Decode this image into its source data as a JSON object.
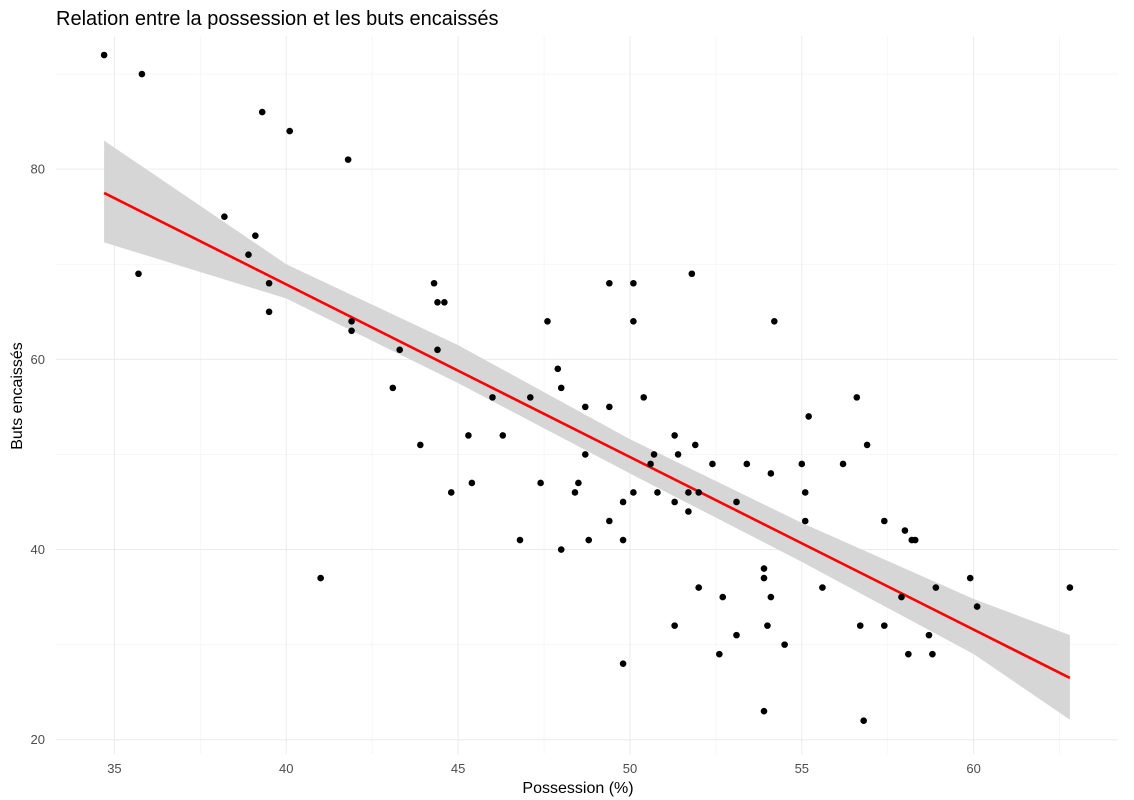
{
  "chart_data": {
    "type": "scatter",
    "title": "Relation entre la possession et les buts encaissés",
    "xlabel": "Possession (%)",
    "ylabel": "Buts encaissés",
    "xlim": [
      33.3,
      64.2
    ],
    "ylim": [
      18.5,
      94.0
    ],
    "x_ticks": [
      35,
      40,
      45,
      50,
      55,
      60
    ],
    "y_ticks": [
      20,
      40,
      60,
      80
    ],
    "grid": true,
    "legend": "none",
    "colors": {
      "points": "#000000",
      "fit_line": "#ff0000",
      "confidence_band": "#d4d4d4"
    },
    "points": [
      {
        "x": 34.7,
        "y": 92
      },
      {
        "x": 35.8,
        "y": 90
      },
      {
        "x": 35.7,
        "y": 69
      },
      {
        "x": 38.2,
        "y": 75
      },
      {
        "x": 38.9,
        "y": 71
      },
      {
        "x": 39.1,
        "y": 73
      },
      {
        "x": 39.3,
        "y": 86
      },
      {
        "x": 39.5,
        "y": 68
      },
      {
        "x": 39.5,
        "y": 65
      },
      {
        "x": 40.1,
        "y": 84
      },
      {
        "x": 41.0,
        "y": 37
      },
      {
        "x": 41.8,
        "y": 81
      },
      {
        "x": 41.9,
        "y": 64
      },
      {
        "x": 41.9,
        "y": 63
      },
      {
        "x": 43.1,
        "y": 57
      },
      {
        "x": 43.3,
        "y": 61
      },
      {
        "x": 43.9,
        "y": 51
      },
      {
        "x": 44.3,
        "y": 68
      },
      {
        "x": 44.4,
        "y": 66
      },
      {
        "x": 44.6,
        "y": 66
      },
      {
        "x": 44.4,
        "y": 61
      },
      {
        "x": 44.8,
        "y": 46
      },
      {
        "x": 45.3,
        "y": 52
      },
      {
        "x": 45.4,
        "y": 47
      },
      {
        "x": 46.0,
        "y": 56
      },
      {
        "x": 46.3,
        "y": 52
      },
      {
        "x": 46.8,
        "y": 41
      },
      {
        "x": 47.1,
        "y": 56
      },
      {
        "x": 47.4,
        "y": 47
      },
      {
        "x": 47.6,
        "y": 64
      },
      {
        "x": 47.9,
        "y": 59
      },
      {
        "x": 48.0,
        "y": 57
      },
      {
        "x": 48.0,
        "y": 40
      },
      {
        "x": 48.4,
        "y": 46
      },
      {
        "x": 48.5,
        "y": 47
      },
      {
        "x": 48.7,
        "y": 55
      },
      {
        "x": 48.7,
        "y": 50
      },
      {
        "x": 48.8,
        "y": 41
      },
      {
        "x": 49.4,
        "y": 68
      },
      {
        "x": 49.4,
        "y": 55
      },
      {
        "x": 49.4,
        "y": 43
      },
      {
        "x": 49.8,
        "y": 45
      },
      {
        "x": 49.8,
        "y": 41
      },
      {
        "x": 49.8,
        "y": 28
      },
      {
        "x": 50.1,
        "y": 68
      },
      {
        "x": 50.1,
        "y": 64
      },
      {
        "x": 50.1,
        "y": 46
      },
      {
        "x": 50.4,
        "y": 56
      },
      {
        "x": 50.6,
        "y": 49
      },
      {
        "x": 50.7,
        "y": 50
      },
      {
        "x": 50.8,
        "y": 46
      },
      {
        "x": 51.3,
        "y": 52
      },
      {
        "x": 51.3,
        "y": 45
      },
      {
        "x": 51.3,
        "y": 32
      },
      {
        "x": 51.4,
        "y": 50
      },
      {
        "x": 51.7,
        "y": 46
      },
      {
        "x": 51.7,
        "y": 44
      },
      {
        "x": 51.8,
        "y": 69
      },
      {
        "x": 51.9,
        "y": 51
      },
      {
        "x": 52.0,
        "y": 46
      },
      {
        "x": 52.0,
        "y": 36
      },
      {
        "x": 52.4,
        "y": 49
      },
      {
        "x": 52.6,
        "y": 29
      },
      {
        "x": 52.7,
        "y": 35
      },
      {
        "x": 53.1,
        "y": 45
      },
      {
        "x": 53.1,
        "y": 31
      },
      {
        "x": 53.4,
        "y": 49
      },
      {
        "x": 53.9,
        "y": 38
      },
      {
        "x": 53.9,
        "y": 37
      },
      {
        "x": 53.9,
        "y": 23
      },
      {
        "x": 54.0,
        "y": 32
      },
      {
        "x": 54.1,
        "y": 48
      },
      {
        "x": 54.1,
        "y": 35
      },
      {
        "x": 54.2,
        "y": 64
      },
      {
        "x": 54.5,
        "y": 30
      },
      {
        "x": 55.0,
        "y": 49
      },
      {
        "x": 55.1,
        "y": 46
      },
      {
        "x": 55.1,
        "y": 43
      },
      {
        "x": 55.2,
        "y": 54
      },
      {
        "x": 55.6,
        "y": 36
      },
      {
        "x": 56.2,
        "y": 49
      },
      {
        "x": 56.6,
        "y": 56
      },
      {
        "x": 56.7,
        "y": 32
      },
      {
        "x": 56.8,
        "y": 22
      },
      {
        "x": 56.9,
        "y": 51
      },
      {
        "x": 57.4,
        "y": 43
      },
      {
        "x": 57.4,
        "y": 32
      },
      {
        "x": 57.9,
        "y": 35
      },
      {
        "x": 58.0,
        "y": 42
      },
      {
        "x": 58.1,
        "y": 29
      },
      {
        "x": 58.2,
        "y": 41
      },
      {
        "x": 58.3,
        "y": 41
      },
      {
        "x": 58.7,
        "y": 31
      },
      {
        "x": 58.8,
        "y": 29
      },
      {
        "x": 58.9,
        "y": 36
      },
      {
        "x": 59.9,
        "y": 37
      },
      {
        "x": 60.1,
        "y": 34
      },
      {
        "x": 62.8,
        "y": 36
      }
    ],
    "fit_line": {
      "method": "linear",
      "x": [
        34.7,
        62.8
      ],
      "y": [
        77.5,
        26.5
      ]
    },
    "confidence_band": {
      "x": [
        34.7,
        40,
        45,
        50,
        55,
        60,
        62.8
      ],
      "lower": [
        72.3,
        66.4,
        57.5,
        48.0,
        38.7,
        29.0,
        22.1
      ],
      "upper": [
        83.0,
        70.0,
        61.5,
        51.6,
        42.8,
        34.8,
        31.0
      ]
    }
  }
}
